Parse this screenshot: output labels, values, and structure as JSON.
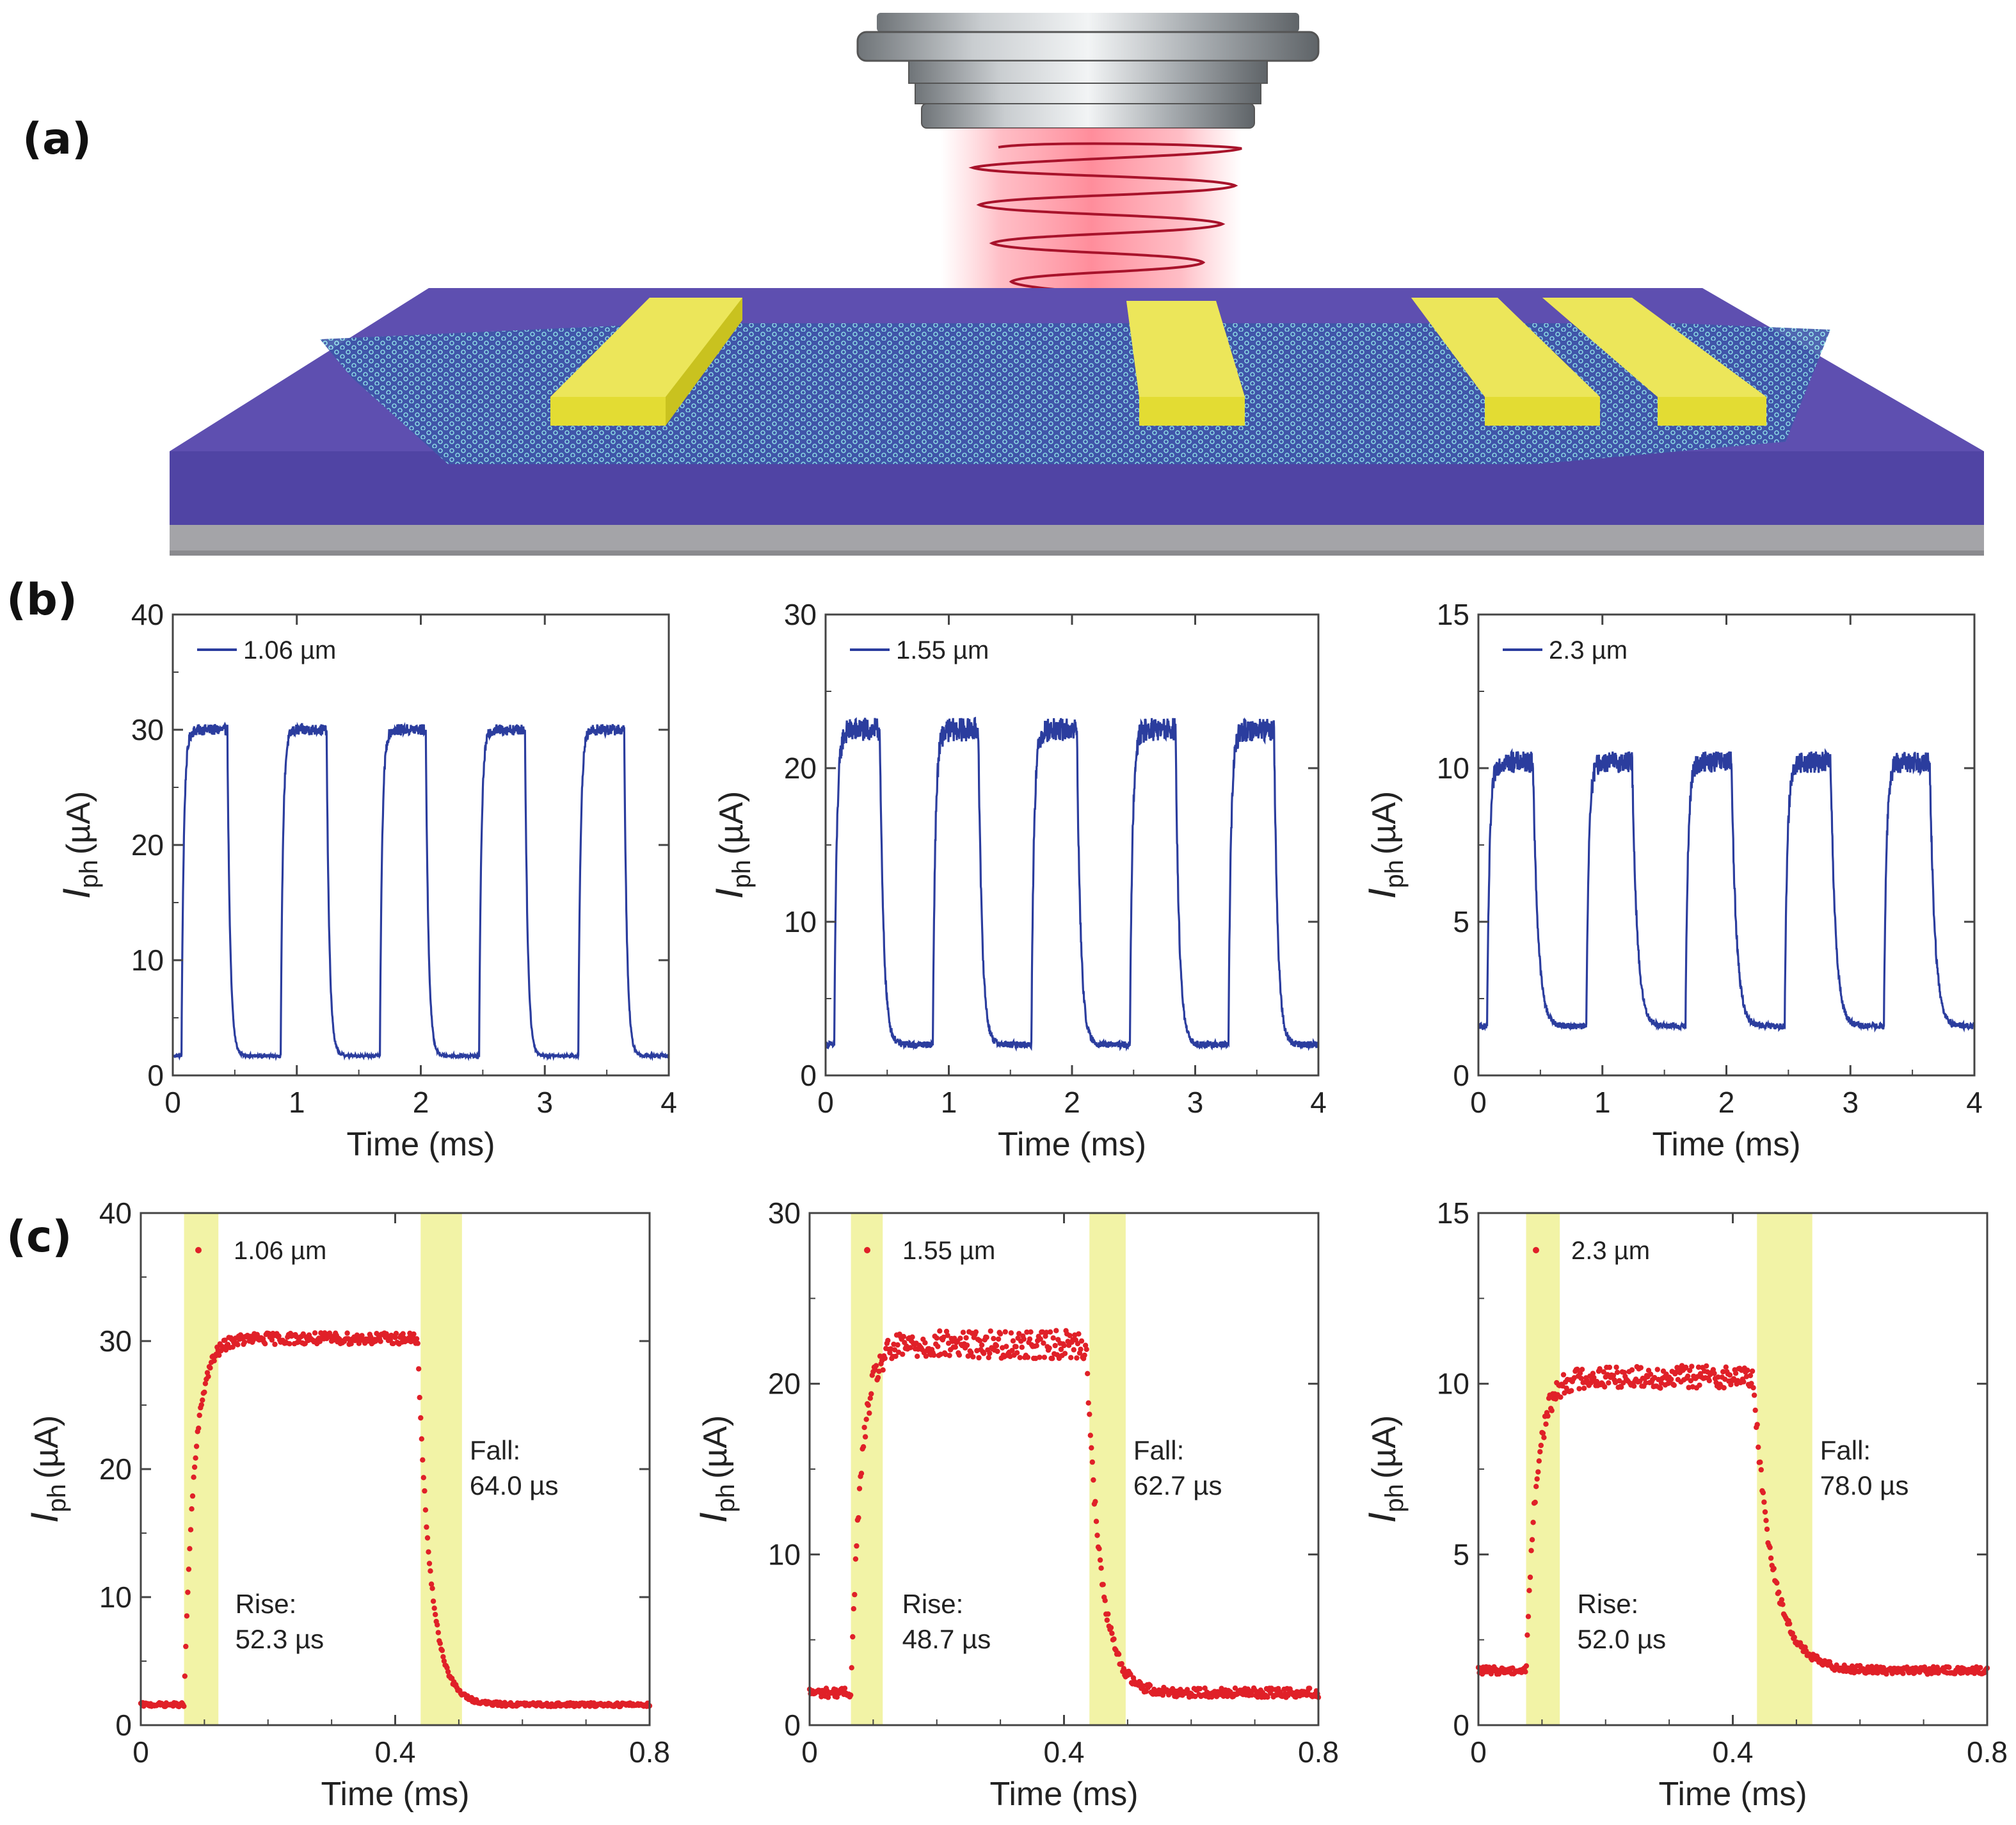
{
  "panel_labels": {
    "a": "(a)",
    "b": "(b)",
    "c": "(c)"
  },
  "colors": {
    "trace_b": "#2b3d9e",
    "trace_c": "#e02028",
    "highlight": "#f2f3a6",
    "substrate_top": "#5e4fb0",
    "substrate_side": "#5044a4",
    "base": "#a4a4a8",
    "electrode": "#d9d22a",
    "lattice": "#7fe0e6",
    "laser": "#ff6b7c"
  },
  "chart_data": [
    {
      "type": "line",
      "panel": "b",
      "legend": "1.06 µm",
      "xlabel": "Time (ms)",
      "ylabel_main": "I",
      "ylabel_sub": "ph",
      "ylabel_unit": "(µA)",
      "xlim": [
        0,
        4
      ],
      "ylim": [
        0,
        40
      ],
      "xticks": [
        "0",
        "1",
        "2",
        "3",
        "4"
      ],
      "yticks": [
        "0",
        "10",
        "20",
        "30",
        "40"
      ],
      "period": 0.8,
      "t_on": 0.07,
      "t_off": 0.44,
      "low": 1.7,
      "high": 30.0,
      "tau_rise": 0.018,
      "tau_fall": 0.022,
      "noise": 0.35
    },
    {
      "type": "line",
      "panel": "b",
      "legend": "1.55 µm",
      "xlabel": "Time (ms)",
      "ylabel_main": "I",
      "ylabel_sub": "ph",
      "ylabel_unit": "(µA)",
      "xlim": [
        0,
        4
      ],
      "ylim": [
        0,
        30
      ],
      "xticks": [
        "0",
        "1",
        "2",
        "3",
        "4"
      ],
      "yticks": [
        "0",
        "10",
        "20",
        "30"
      ],
      "period": 0.8,
      "t_on": 0.07,
      "t_off": 0.44,
      "low": 2.0,
      "high": 22.5,
      "tau_rise": 0.02,
      "tau_fall": 0.03,
      "noise": 0.55
    },
    {
      "type": "line",
      "panel": "b",
      "legend": "2.3 µm",
      "xlabel": "Time (ms)",
      "ylabel_main": "I",
      "ylabel_sub": "ph",
      "ylabel_unit": "(µA)",
      "xlim": [
        0,
        4
      ],
      "ylim": [
        0,
        15
      ],
      "xticks": [
        "0",
        "1",
        "2",
        "3",
        "4"
      ],
      "yticks": [
        "0",
        "5",
        "10",
        "15"
      ],
      "period": 0.8,
      "t_on": 0.07,
      "t_off": 0.44,
      "low": 1.6,
      "high": 10.2,
      "tau_rise": 0.02,
      "tau_fall": 0.04,
      "noise": 0.25
    },
    {
      "type": "scatter",
      "panel": "c",
      "legend": "1.06 µm",
      "xlabel": "Time (ms)",
      "ylabel_main": "I",
      "ylabel_sub": "ph",
      "ylabel_unit": "(µA)",
      "xlim": [
        0,
        0.8
      ],
      "ylim": [
        0,
        40
      ],
      "xticks": [
        "0",
        "0.4",
        "0.8"
      ],
      "yticks": [
        "0",
        "10",
        "20",
        "30",
        "40"
      ],
      "rise_label": "Rise:",
      "rise_value": "52.3 µs",
      "fall_label": "Fall:",
      "fall_value": "64.0 µs",
      "rise_band": [
        0.068,
        0.122
      ],
      "fall_band": [
        0.44,
        0.505
      ],
      "t_on": 0.068,
      "t_off": 0.435,
      "low": 1.6,
      "high": 30.2,
      "tau_rise": 0.016,
      "tau_fall": 0.02,
      "noise": 0.3
    },
    {
      "type": "scatter",
      "panel": "c",
      "legend": "1.55 µm",
      "xlabel": "Time (ms)",
      "ylabel_main": "I",
      "ylabel_sub": "ph",
      "ylabel_unit": "(µA)",
      "xlim": [
        0,
        0.8
      ],
      "ylim": [
        0,
        30
      ],
      "xticks": [
        "0",
        "0.4",
        "0.8"
      ],
      "yticks": [
        "0",
        "10",
        "20",
        "30"
      ],
      "rise_label": "Rise:",
      "rise_value": "48.7 µs",
      "fall_label": "Fall:",
      "fall_value": "62.7 µs",
      "rise_band": [
        0.065,
        0.115
      ],
      "fall_band": [
        0.44,
        0.497
      ],
      "t_on": 0.065,
      "t_off": 0.435,
      "low": 1.9,
      "high": 22.3,
      "tau_rise": 0.016,
      "tau_fall": 0.022,
      "noise": 0.55
    },
    {
      "type": "scatter",
      "panel": "c",
      "legend": "2.3 µm",
      "xlabel": "Time (ms)",
      "ylabel_main": "I",
      "ylabel_sub": "ph",
      "ylabel_unit": "(µA)",
      "xlim": [
        0,
        0.8
      ],
      "ylim": [
        0,
        15
      ],
      "xticks": [
        "0",
        "0.4",
        "0.8"
      ],
      "yticks": [
        "0",
        "5",
        "10",
        "15"
      ],
      "rise_label": "Rise:",
      "rise_value": "52.0 µs",
      "fall_label": "Fall:",
      "fall_value": "78.0 µs",
      "rise_band": [
        0.075,
        0.128
      ],
      "fall_band": [
        0.438,
        0.525
      ],
      "t_on": 0.075,
      "t_off": 0.432,
      "low": 1.6,
      "high": 10.2,
      "tau_rise": 0.016,
      "tau_fall": 0.03,
      "noise": 0.22
    }
  ]
}
